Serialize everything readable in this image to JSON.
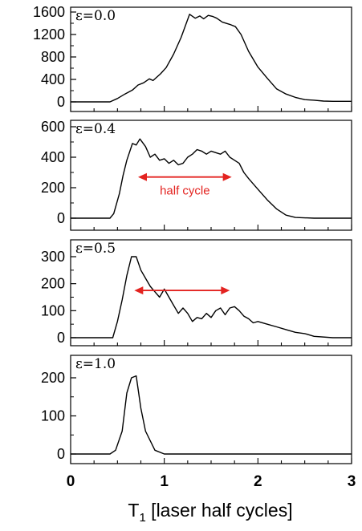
{
  "chart_data": {
    "type": "line",
    "x_axis": {
      "ticks": [
        0,
        1,
        2,
        3
      ],
      "tick_labels": [
        "0",
        "1",
        "2",
        "3"
      ],
      "label_main": "T",
      "label_sub": "1",
      "label_rest": " [laser half cycles]",
      "range": [
        0,
        3
      ]
    },
    "line_color": "#000000",
    "annotation_color": "#e32320",
    "panels": [
      {
        "label": "ε=0.0",
        "ylim": [
          0,
          1600
        ],
        "yticks": [
          0,
          400,
          800,
          1200,
          1600
        ],
        "ytick_labels": [
          "0",
          "400",
          "800",
          "1200",
          "1600"
        ],
        "x": [
          0,
          0.42,
          0.5,
          0.58,
          0.66,
          0.72,
          0.78,
          0.84,
          0.88,
          0.96,
          1.02,
          1.1,
          1.18,
          1.27,
          1.33,
          1.38,
          1.42,
          1.47,
          1.52,
          1.56,
          1.62,
          1.7,
          1.76,
          1.82,
          1.9,
          2.0,
          2.1,
          2.2,
          2.3,
          2.4,
          2.5,
          2.6,
          2.7,
          2.8,
          3.0
        ],
        "y": [
          0,
          0,
          60,
          140,
          210,
          300,
          340,
          410,
          380,
          500,
          610,
          850,
          1150,
          1560,
          1490,
          1530,
          1480,
          1540,
          1520,
          1490,
          1420,
          1380,
          1340,
          1200,
          900,
          620,
          420,
          230,
          140,
          80,
          40,
          30,
          15,
          10,
          10
        ]
      },
      {
        "label": "ε=0.4",
        "ylim": [
          0,
          600
        ],
        "yticks": [
          0,
          200,
          400,
          600
        ],
        "ytick_labels": [
          "0",
          "200",
          "400",
          "600"
        ],
        "x": [
          0,
          0.42,
          0.46,
          0.52,
          0.56,
          0.6,
          0.66,
          0.7,
          0.74,
          0.8,
          0.85,
          0.9,
          0.95,
          1.0,
          1.05,
          1.1,
          1.15,
          1.2,
          1.25,
          1.3,
          1.35,
          1.4,
          1.45,
          1.5,
          1.55,
          1.6,
          1.65,
          1.7,
          1.75,
          1.8,
          1.85,
          1.9,
          2.0,
          2.1,
          2.2,
          2.3,
          2.4,
          2.6,
          3.0
        ],
        "y": [
          0,
          0,
          30,
          160,
          280,
          380,
          490,
          480,
          520,
          470,
          400,
          420,
          380,
          390,
          360,
          380,
          350,
          360,
          400,
          420,
          450,
          440,
          420,
          440,
          430,
          420,
          440,
          400,
          380,
          360,
          300,
          260,
          190,
          120,
          60,
          20,
          5,
          0,
          0
        ]
      },
      {
        "label": "ε=0.5",
        "ylim": [
          0,
          300
        ],
        "yticks": [
          0,
          100,
          200,
          300
        ],
        "ytick_labels": [
          "0",
          "100",
          "200",
          "300"
        ],
        "x": [
          0,
          0.45,
          0.5,
          0.55,
          0.6,
          0.65,
          0.7,
          0.75,
          0.8,
          0.85,
          0.9,
          0.95,
          1.0,
          1.05,
          1.1,
          1.15,
          1.2,
          1.25,
          1.3,
          1.35,
          1.4,
          1.45,
          1.5,
          1.55,
          1.6,
          1.65,
          1.7,
          1.75,
          1.8,
          1.85,
          1.9,
          1.95,
          2.0,
          2.1,
          2.2,
          2.3,
          2.4,
          2.5,
          2.6,
          2.8,
          3.0
        ],
        "y": [
          0,
          0,
          60,
          140,
          230,
          300,
          300,
          250,
          220,
          190,
          170,
          150,
          180,
          150,
          120,
          90,
          110,
          90,
          60,
          75,
          70,
          90,
          75,
          100,
          110,
          85,
          110,
          115,
          100,
          80,
          70,
          55,
          60,
          50,
          40,
          30,
          20,
          15,
          5,
          0,
          0
        ]
      },
      {
        "label": "ε=1.0",
        "ylim": [
          0,
          250
        ],
        "yticks": [
          0,
          100,
          200
        ],
        "ytick_labels": [
          "0",
          "100",
          "200"
        ],
        "x": [
          0,
          0.42,
          0.48,
          0.55,
          0.6,
          0.65,
          0.7,
          0.75,
          0.8,
          0.9,
          1.0,
          1.1,
          3.0
        ],
        "y": [
          0,
          0,
          10,
          60,
          160,
          200,
          205,
          120,
          60,
          10,
          0,
          0,
          0
        ]
      }
    ],
    "annotations": [
      {
        "panel": 1,
        "text": "half cycle",
        "x_start": 0.72,
        "x_end": 1.72,
        "y": 270
      },
      {
        "panel": 2,
        "text": "",
        "x_start": 0.68,
        "x_end": 1.7,
        "y": 175
      }
    ]
  }
}
